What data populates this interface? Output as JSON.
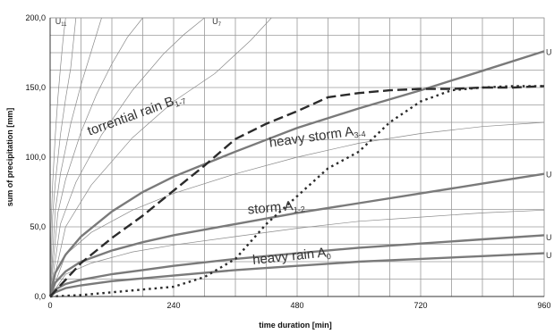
{
  "chart_data": {
    "type": "line",
    "xlabel": "time duration [min]",
    "ylabel": "sum of precipitation [mm]",
    "xlim": [
      0,
      960
    ],
    "ylim": [
      0,
      200
    ],
    "x_ticks": [
      "0",
      "240",
      "480",
      "720",
      "960"
    ],
    "y_ticks": [
      "0,0",
      "50,0",
      "100,0",
      "150,0",
      "200,0"
    ],
    "grid": true,
    "region_labels": [
      {
        "key": "torrential",
        "text": "torrential rain B",
        "sub": "1-7",
        "x": 170,
        "y": 128,
        "rot": -20
      },
      {
        "key": "heavy_storm",
        "text": "heavy storm A",
        "sub": "3-4",
        "x": 520,
        "y": 112,
        "rot": -8
      },
      {
        "key": "storm",
        "text": "storm A",
        "sub": "1-2",
        "x": 440,
        "y": 61,
        "rot": -5
      },
      {
        "key": "heavy_rain",
        "text": "heavy rain A",
        "sub": "0",
        "x": 470,
        "y": 26,
        "rot": -6
      }
    ],
    "u_labels": [
      {
        "key": "u11",
        "text": "U",
        "sub": "11",
        "x": 10,
        "y": 198
      },
      {
        "key": "u7",
        "text": "U",
        "sub": "7",
        "x": 315,
        "y": 198
      },
      {
        "key": "u_a",
        "text": "U",
        "sub": "",
        "x": 985,
        "y": 176
      },
      {
        "key": "u_b",
        "text": "U",
        "sub": "",
        "x": 985,
        "y": 88
      },
      {
        "key": "u_c",
        "text": "U",
        "sub": "",
        "x": 985,
        "y": 43
      },
      {
        "key": "u_d",
        "text": "U",
        "sub": "",
        "x": 985,
        "y": 30
      }
    ],
    "thick_curves": [
      {
        "x": [
          0,
          10,
          30,
          60,
          120,
          180,
          240,
          360,
          480,
          600,
          720,
          840,
          960
        ],
        "y": [
          0,
          17,
          30,
          43,
          61,
          75,
          86,
          104,
          121,
          135,
          148,
          162,
          176
        ]
      },
      {
        "x": [
          0,
          10,
          30,
          60,
          120,
          180,
          240,
          360,
          480,
          600,
          720,
          840,
          960
        ],
        "y": [
          0,
          10,
          18,
          25,
          33,
          39,
          44,
          52,
          60,
          67,
          74,
          81,
          88
        ]
      },
      {
        "x": [
          0,
          10,
          30,
          60,
          120,
          180,
          240,
          360,
          480,
          600,
          720,
          840,
          960
        ],
        "y": [
          0,
          5,
          9,
          12,
          16,
          19,
          22,
          27,
          31,
          35,
          38,
          41,
          44
        ]
      },
      {
        "x": [
          0,
          10,
          30,
          60,
          120,
          180,
          240,
          360,
          480,
          600,
          720,
          840,
          960
        ],
        "y": [
          0,
          3,
          6,
          8,
          11,
          13,
          15,
          19,
          22,
          25,
          27,
          29,
          31
        ]
      }
    ],
    "thin_curves": [
      {
        "x": [
          0,
          2,
          5,
          10,
          15,
          20,
          25,
          30
        ],
        "y": [
          0,
          52,
          82,
          116,
          142,
          164,
          184,
          200
        ]
      },
      {
        "x": [
          0,
          5,
          10,
          20,
          30,
          40,
          50
        ],
        "y": [
          0,
          58,
          82,
          116,
          142,
          164,
          200
        ]
      },
      {
        "x": [
          0,
          10,
          20,
          40,
          60,
          80,
          100
        ],
        "y": [
          0,
          62,
          88,
          124,
          152,
          176,
          200
        ]
      },
      {
        "x": [
          0,
          15,
          30,
          60,
          90,
          120,
          150,
          180
        ],
        "y": [
          0,
          60,
          84,
          118,
          145,
          167,
          186,
          200
        ]
      },
      {
        "x": [
          0,
          20,
          50,
          100,
          160,
          220,
          260,
          300
        ],
        "y": [
          0,
          52,
          82,
          116,
          148,
          174,
          188,
          200
        ]
      },
      {
        "x": [
          0,
          30,
          80,
          160,
          240,
          320,
          390,
          430
        ],
        "y": [
          0,
          50,
          80,
          114,
          140,
          160,
          184,
          200
        ]
      },
      {
        "x": [
          0,
          30,
          80,
          160,
          240,
          360,
          480,
          600,
          720,
          840,
          960
        ],
        "y": [
          0,
          30,
          46,
          62,
          74,
          88,
          100,
          110,
          117,
          122,
          125
        ]
      },
      {
        "x": [
          0,
          30,
          80,
          160,
          240,
          360,
          480,
          600,
          720,
          840,
          960
        ],
        "y": [
          0,
          16,
          24,
          32,
          37,
          43,
          49,
          54,
          57,
          60,
          62
        ]
      }
    ],
    "dashed_curve": {
      "x": [
        0,
        60,
        120,
        180,
        240,
        300,
        360,
        420,
        480,
        540,
        600,
        660,
        720,
        780,
        840,
        900,
        960
      ],
      "y": [
        0,
        24,
        42,
        58,
        76,
        94,
        113,
        124,
        133,
        143,
        146,
        148,
        149,
        149,
        150,
        150,
        151
      ]
    },
    "dotted_curve": {
      "x": [
        0,
        60,
        120,
        180,
        240,
        300,
        360,
        420,
        480,
        540,
        600,
        660,
        720,
        780,
        840,
        900,
        960
      ],
      "y": [
        0,
        1,
        3,
        5,
        7,
        14,
        27,
        52,
        72,
        92,
        104,
        125,
        140,
        148,
        150,
        151,
        151
      ]
    }
  }
}
